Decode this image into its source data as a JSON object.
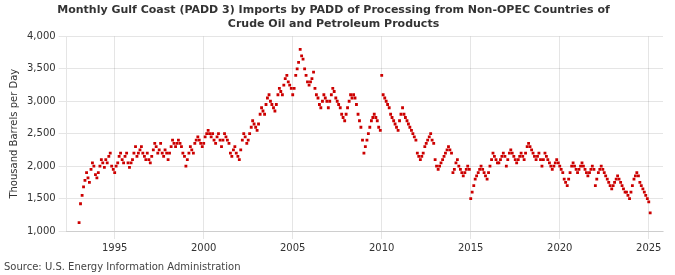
{
  "chart_data": {
    "type": "scatter",
    "title": "Monthly Gulf Coast (PADD 3) Imports by PADD of Processing from Non-OPEC Countries of\nCrude Oil and Petroleum Products",
    "y_label": "Thousand Barrels per Day",
    "source": "Source: U.S. Energy Information Administration",
    "color": "#cc0000",
    "marker": "square",
    "grid": true,
    "xlim": [
      1992.3,
      2025.8
    ],
    "ylim": [
      1000,
      4000
    ],
    "xticks": [
      1995,
      2000,
      2005,
      2010,
      2015,
      2020,
      2025
    ],
    "yticks": [
      {
        "value": 1000,
        "label": "1,000"
      },
      {
        "value": 1500,
        "label": "1,500"
      },
      {
        "value": 2000,
        "label": "2,000"
      },
      {
        "value": 2500,
        "label": "2,500"
      },
      {
        "value": 3000,
        "label": "3,000"
      },
      {
        "value": 3500,
        "label": "3,500"
      },
      {
        "value": 4000,
        "label": "4,000"
      }
    ],
    "x": [
      1993.0,
      1993.08,
      1993.17,
      1993.25,
      1993.33,
      1993.42,
      1993.5,
      1993.58,
      1993.67,
      1993.75,
      1993.83,
      1993.92,
      1994.0,
      1994.08,
      1994.17,
      1994.25,
      1994.33,
      1994.42,
      1994.5,
      1994.58,
      1994.67,
      1994.75,
      1994.83,
      1994.92,
      1995.0,
      1995.08,
      1995.17,
      1995.25,
      1995.33,
      1995.42,
      1995.5,
      1995.58,
      1995.67,
      1995.75,
      1995.83,
      1995.92,
      1996.0,
      1996.08,
      1996.17,
      1996.25,
      1996.33,
      1996.42,
      1996.5,
      1996.58,
      1996.67,
      1996.75,
      1996.83,
      1996.92,
      1997.0,
      1997.08,
      1997.17,
      1997.25,
      1997.33,
      1997.42,
      1997.5,
      1997.58,
      1997.67,
      1997.75,
      1997.83,
      1997.92,
      1998.0,
      1998.08,
      1998.17,
      1998.25,
      1998.33,
      1998.42,
      1998.5,
      1998.58,
      1998.67,
      1998.75,
      1998.83,
      1998.92,
      1999.0,
      1999.08,
      1999.17,
      1999.25,
      1999.33,
      1999.42,
      1999.5,
      1999.58,
      1999.67,
      1999.75,
      1999.83,
      1999.92,
      2000.0,
      2000.08,
      2000.17,
      2000.25,
      2000.33,
      2000.42,
      2000.5,
      2000.58,
      2000.67,
      2000.75,
      2000.83,
      2000.92,
      2001.0,
      2001.08,
      2001.17,
      2001.25,
      2001.33,
      2001.42,
      2001.5,
      2001.58,
      2001.67,
      2001.75,
      2001.83,
      2001.92,
      2002.0,
      2002.08,
      2002.17,
      2002.25,
      2002.33,
      2002.42,
      2002.5,
      2002.58,
      2002.67,
      2002.75,
      2002.83,
      2002.92,
      2003.0,
      2003.08,
      2003.17,
      2003.25,
      2003.33,
      2003.42,
      2003.5,
      2003.58,
      2003.67,
      2003.75,
      2003.83,
      2003.92,
      2004.0,
      2004.08,
      2004.17,
      2004.25,
      2004.33,
      2004.42,
      2004.5,
      2004.58,
      2004.67,
      2004.75,
      2004.83,
      2004.92,
      2005.0,
      2005.08,
      2005.17,
      2005.25,
      2005.33,
      2005.42,
      2005.5,
      2005.58,
      2005.67,
      2005.75,
      2005.83,
      2005.92,
      2006.0,
      2006.08,
      2006.17,
      2006.25,
      2006.33,
      2006.42,
      2006.5,
      2006.58,
      2006.67,
      2006.75,
      2006.83,
      2006.92,
      2007.0,
      2007.08,
      2007.17,
      2007.25,
      2007.33,
      2007.42,
      2007.5,
      2007.58,
      2007.67,
      2007.75,
      2007.83,
      2007.92,
      2008.0,
      2008.08,
      2008.17,
      2008.25,
      2008.33,
      2008.42,
      2008.5,
      2008.58,
      2008.67,
      2008.75,
      2008.83,
      2008.92,
      2009.0,
      2009.08,
      2009.17,
      2009.25,
      2009.33,
      2009.42,
      2009.5,
      2009.58,
      2009.67,
      2009.75,
      2009.83,
      2009.92,
      2010.0,
      2010.08,
      2010.17,
      2010.25,
      2010.33,
      2010.42,
      2010.5,
      2010.58,
      2010.67,
      2010.75,
      2010.83,
      2010.92,
      2011.0,
      2011.08,
      2011.17,
      2011.25,
      2011.33,
      2011.42,
      2011.5,
      2011.58,
      2011.67,
      2011.75,
      2011.83,
      2011.92,
      2012.0,
      2012.08,
      2012.17,
      2012.25,
      2012.33,
      2012.42,
      2012.5,
      2012.58,
      2012.67,
      2012.75,
      2012.83,
      2012.92,
      2013.0,
      2013.08,
      2013.17,
      2013.25,
      2013.33,
      2013.42,
      2013.5,
      2013.58,
      2013.67,
      2013.75,
      2013.83,
      2013.92,
      2014.0,
      2014.08,
      2014.17,
      2014.25,
      2014.33,
      2014.42,
      2014.5,
      2014.58,
      2014.67,
      2014.75,
      2014.83,
      2014.92,
      2015.0,
      2015.08,
      2015.17,
      2015.25,
      2015.33,
      2015.42,
      2015.5,
      2015.58,
      2015.67,
      2015.75,
      2015.83,
      2015.92,
      2016.0,
      2016.08,
      2016.17,
      2016.25,
      2016.33,
      2016.42,
      2016.5,
      2016.58,
      2016.67,
      2016.75,
      2016.83,
      2016.92,
      2017.0,
      2017.08,
      2017.17,
      2017.25,
      2017.33,
      2017.42,
      2017.5,
      2017.58,
      2017.67,
      2017.75,
      2017.83,
      2017.92,
      2018.0,
      2018.08,
      2018.17,
      2018.25,
      2018.33,
      2018.42,
      2018.5,
      2018.58,
      2018.67,
      2018.75,
      2018.83,
      2018.92,
      2019.0,
      2019.08,
      2019.17,
      2019.25,
      2019.33,
      2019.42,
      2019.5,
      2019.58,
      2019.67,
      2019.75,
      2019.83,
      2019.92,
      2020.0,
      2020.08,
      2020.17,
      2020.25,
      2020.33,
      2020.42,
      2020.5,
      2020.58,
      2020.67,
      2020.75,
      2020.83,
      2020.92,
      2021.0,
      2021.08,
      2021.17,
      2021.25,
      2021.33,
      2021.42,
      2021.5,
      2021.58,
      2021.67,
      2021.75,
      2021.83,
      2021.92,
      2022.0,
      2022.08,
      2022.17,
      2022.25,
      2022.33,
      2022.42,
      2022.5,
      2022.58,
      2022.67,
      2022.75,
      2022.83,
      2022.92,
      2023.0,
      2023.08,
      2023.17,
      2023.25,
      2023.33,
      2023.42,
      2023.5,
      2023.58,
      2023.67,
      2023.75,
      2023.83,
      2023.92,
      2024.0,
      2024.08,
      2024.17,
      2024.25,
      2024.33,
      2024.42,
      2024.5,
      2024.58,
      2024.67,
      2024.75,
      2024.83,
      2024.92,
      2025.0,
      2025.08
    ],
    "values": [
      1130,
      1420,
      1550,
      1680,
      1780,
      1900,
      1820,
      1750,
      1950,
      2050,
      2000,
      1870,
      1820,
      1900,
      2000,
      2100,
      2050,
      1980,
      2100,
      2050,
      2150,
      2200,
      2000,
      1950,
      1900,
      2000,
      2050,
      2150,
      2200,
      2100,
      2050,
      2150,
      2200,
      2050,
      1980,
      2050,
      2100,
      2200,
      2300,
      2150,
      2200,
      2250,
      2300,
      2200,
      2150,
      2100,
      2200,
      2100,
      2050,
      2150,
      2250,
      2350,
      2300,
      2200,
      2250,
      2350,
      2200,
      2150,
      2250,
      2200,
      2100,
      2200,
      2300,
      2400,
      2350,
      2300,
      2350,
      2400,
      2350,
      2300,
      2200,
      2150,
      2000,
      2100,
      2200,
      2300,
      2250,
      2200,
      2350,
      2400,
      2450,
      2400,
      2350,
      2300,
      2350,
      2450,
      2500,
      2550,
      2500,
      2450,
      2500,
      2400,
      2350,
      2450,
      2500,
      2400,
      2300,
      2400,
      2500,
      2450,
      2400,
      2350,
      2200,
      2150,
      2250,
      2300,
      2200,
      2150,
      2100,
      2250,
      2400,
      2500,
      2450,
      2350,
      2400,
      2500,
      2600,
      2700,
      2650,
      2600,
      2550,
      2650,
      2800,
      2900,
      2850,
      2800,
      2950,
      3050,
      3100,
      3000,
      2950,
      2900,
      2850,
      2950,
      3100,
      3200,
      3150,
      3100,
      3250,
      3350,
      3400,
      3300,
      3250,
      3200,
      3100,
      3200,
      3400,
      3500,
      3600,
      3800,
      3700,
      3650,
      3500,
      3400,
      3300,
      3250,
      3300,
      3350,
      3450,
      3200,
      3100,
      3050,
      2950,
      2900,
      3000,
      3100,
      3050,
      3000,
      2900,
      3000,
      3100,
      3200,
      3150,
      3050,
      3000,
      2950,
      2900,
      2800,
      2750,
      2700,
      2800,
      2900,
      3000,
      3100,
      3050,
      3100,
      3050,
      2950,
      2800,
      2700,
      2600,
      2400,
      2200,
      2300,
      2400,
      2500,
      2600,
      2700,
      2750,
      2800,
      2750,
      2700,
      2600,
      2550,
      3400,
      3100,
      3050,
      3000,
      2950,
      2900,
      2800,
      2750,
      2700,
      2650,
      2600,
      2550,
      2700,
      2800,
      2900,
      2800,
      2750,
      2700,
      2650,
      2600,
      2550,
      2500,
      2450,
      2400,
      2200,
      2150,
      2100,
      2150,
      2200,
      2300,
      2350,
      2400,
      2450,
      2500,
      2400,
      2350,
      2100,
      2000,
      1950,
      2000,
      2050,
      2100,
      2150,
      2200,
      2250,
      2300,
      2250,
      2200,
      1900,
      1950,
      2050,
      2100,
      2000,
      1950,
      1900,
      1850,
      1900,
      1950,
      2000,
      1950,
      1500,
      1600,
      1700,
      1800,
      1850,
      1900,
      1950,
      2000,
      1950,
      1900,
      1850,
      1800,
      1900,
      2000,
      2100,
      2200,
      2150,
      2100,
      2050,
      2050,
      2100,
      2150,
      2200,
      2150,
      2000,
      2100,
      2200,
      2250,
      2200,
      2150,
      2100,
      2050,
      2100,
      2150,
      2200,
      2150,
      2100,
      2200,
      2300,
      2350,
      2300,
      2250,
      2200,
      2150,
      2100,
      2150,
      2200,
      2100,
      2000,
      2100,
      2200,
      2150,
      2100,
      2050,
      2000,
      1950,
      2000,
      2050,
      2100,
      2050,
      2000,
      1950,
      1900,
      1800,
      1750,
      1700,
      1800,
      1900,
      2000,
      2050,
      2000,
      1950,
      1900,
      1950,
      2000,
      2050,
      2000,
      1950,
      1900,
      1850,
      1900,
      1950,
      2000,
      1950,
      1700,
      1800,
      1900,
      1950,
      2000,
      1950,
      1900,
      1850,
      1800,
      1750,
      1700,
      1650,
      1700,
      1750,
      1800,
      1850,
      1800,
      1750,
      1700,
      1650,
      1600,
      1600,
      1550,
      1500,
      1600,
      1700,
      1800,
      1850,
      1900,
      1850,
      1750,
      1700,
      1650,
      1600,
      1550,
      1500,
      1450,
      1280
    ]
  }
}
